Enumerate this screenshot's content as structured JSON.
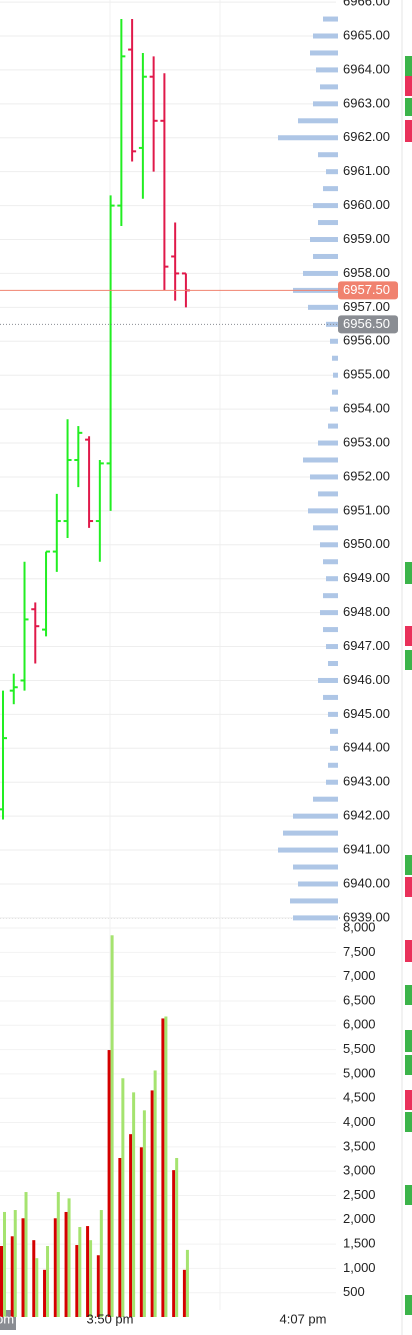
{
  "chart_data": [
    {
      "type": "ohlc",
      "up_color": "#22ee22",
      "down_color": "#e0194a",
      "open": [
        6942.2,
        6945.7,
        6946.0,
        6948.1,
        6947.5,
        6949.8,
        6950.7,
        6952.5,
        6953.1,
        6950.7,
        6952.4,
        6960.0,
        6964.6,
        6961.7,
        6963.8,
        6962.5,
        6958.5,
        6958.0
      ],
      "high": [
        6945.7,
        6946.2,
        6949.5,
        6948.3,
        6949.8,
        6951.5,
        6953.7,
        6953.5,
        6953.2,
        6952.5,
        6960.3,
        6965.5,
        6965.5,
        6964.5,
        6964.4,
        6963.9,
        6959.5,
        6958.0
      ],
      "low": [
        6941.9,
        6945.3,
        6945.7,
        6946.5,
        6947.3,
        6949.2,
        6950.2,
        6951.7,
        6950.5,
        6949.5,
        6951.0,
        6959.4,
        6961.3,
        6960.2,
        6961.0,
        6957.5,
        6957.2,
        6957.0
      ],
      "close": [
        6944.3,
        6945.8,
        6947.8,
        6947.6,
        6949.8,
        6950.7,
        6952.5,
        6953.3,
        6950.7,
        6952.4,
        6960.0,
        6964.4,
        6961.6,
        6963.8,
        6962.5,
        6958.2,
        6958.0,
        6957.5
      ],
      "ylim": [
        6939,
        6966
      ],
      "yticks": [
        {
          "value": 6966,
          "label": "6966.00"
        },
        {
          "value": 6965,
          "label": "6965.00"
        },
        {
          "value": 6964,
          "label": "6964.00"
        },
        {
          "value": 6963,
          "label": "6963.00"
        },
        {
          "value": 6962,
          "label": "6962.00"
        },
        {
          "value": 6961,
          "label": "6961.00"
        },
        {
          "value": 6960,
          "label": "6960.00"
        },
        {
          "value": 6959,
          "label": "6959.00"
        },
        {
          "value": 6958,
          "label": "6958.00"
        },
        {
          "value": 6957,
          "label": "6957.00"
        },
        {
          "value": 6956,
          "label": "6956.00"
        },
        {
          "value": 6955,
          "label": "6955.00"
        },
        {
          "value": 6954,
          "label": "6954.00"
        },
        {
          "value": 6953,
          "label": "6953.00"
        },
        {
          "value": 6952,
          "label": "6952.00"
        },
        {
          "value": 6951,
          "label": "6951.00"
        },
        {
          "value": 6950,
          "label": "6950.00"
        },
        {
          "value": 6949,
          "label": "6949.00"
        },
        {
          "value": 6948,
          "label": "6948.00"
        },
        {
          "value": 6947,
          "label": "6947.00"
        },
        {
          "value": 6946,
          "label": "6946.00"
        },
        {
          "value": 6945,
          "label": "6945.00"
        },
        {
          "value": 6944,
          "label": "6944.00"
        },
        {
          "value": 6943,
          "label": "6943.00"
        },
        {
          "value": 6942,
          "label": "6942.00"
        },
        {
          "value": 6941,
          "label": "6941.00"
        },
        {
          "value": 6940,
          "label": "6940.00"
        },
        {
          "value": 6939,
          "label": "6939.00"
        }
      ],
      "grid": true,
      "price_markers": [
        {
          "value": 6957.5,
          "label": "6957.50",
          "color": "#f0826f"
        },
        {
          "value": 6956.5,
          "label": "6956.50",
          "color": "#8a8d93"
        }
      ],
      "volume_profile": {
        "color": "#aec6e6",
        "prices": [
          6965.5,
          6965,
          6964.5,
          6964,
          6963.5,
          6963,
          6962.5,
          6962,
          6961.5,
          6961,
          6960.5,
          6960,
          6959.5,
          6959,
          6958.5,
          6958,
          6957.5,
          6957,
          6956.5,
          6956,
          6955.5,
          6955,
          6954.5,
          6954,
          6953.5,
          6953,
          6952.5,
          6952,
          6951.5,
          6951,
          6950.5,
          6950,
          6949.5,
          6949,
          6948.5,
          6948,
          6947.5,
          6947,
          6946.5,
          6946,
          6945.5,
          6945,
          6944.5,
          6944,
          6943.5,
          6943,
          6942.5,
          6942,
          6941.5,
          6941,
          6940.5,
          6940,
          6939.5,
          6939
        ],
        "values": [
          15,
          25,
          28,
          22,
          18,
          25,
          40,
          60,
          20,
          12,
          15,
          25,
          20,
          28,
          25,
          35,
          45,
          30,
          12,
          8,
          6,
          5,
          6,
          8,
          10,
          20,
          35,
          28,
          20,
          30,
          25,
          18,
          15,
          12,
          15,
          18,
          15,
          12,
          10,
          20,
          15,
          10,
          8,
          8,
          10,
          12,
          25,
          45,
          55,
          60,
          45,
          40,
          48,
          45
        ]
      }
    },
    {
      "type": "bar",
      "series": [
        {
          "color": "#d40000",
          "values": [
            1460,
            1660,
            2030,
            1580,
            970,
            2030,
            2160,
            1480,
            1870,
            1270,
            5490,
            3270,
            3760,
            3490,
            4660,
            6140,
            3020,
            970
          ]
        },
        {
          "color": "#a5e36f",
          "values": [
            2160,
            2200,
            2570,
            1210,
            1460,
            2570,
            2440,
            1850,
            1580,
            2200,
            7850,
            4910,
            4620,
            4250,
            5070,
            6180,
            3270,
            1380
          ]
        }
      ],
      "ylim": [
        0,
        8000
      ],
      "yticks": [
        {
          "value": 8000,
          "label": "8,000"
        },
        {
          "value": 7500,
          "label": "7,500"
        },
        {
          "value": 7000,
          "label": "7,000"
        },
        {
          "value": 6500,
          "label": "6,500"
        },
        {
          "value": 6000,
          "label": "6,000"
        },
        {
          "value": 5500,
          "label": "5,500"
        },
        {
          "value": 5000,
          "label": "5,000"
        },
        {
          "value": 4500,
          "label": "4,500"
        },
        {
          "value": 4000,
          "label": "4,000"
        },
        {
          "value": 3500,
          "label": "3,500"
        },
        {
          "value": 3000,
          "label": "3,000"
        },
        {
          "value": 2500,
          "label": "2,500"
        },
        {
          "value": 2000,
          "label": "2,000"
        },
        {
          "value": 1500,
          "label": "1,500"
        },
        {
          "value": 1000,
          "label": "1,000"
        },
        500
      ],
      "x_labels": [
        "pm",
        "3:50 pm",
        "4:07 pm"
      ]
    }
  ]
}
